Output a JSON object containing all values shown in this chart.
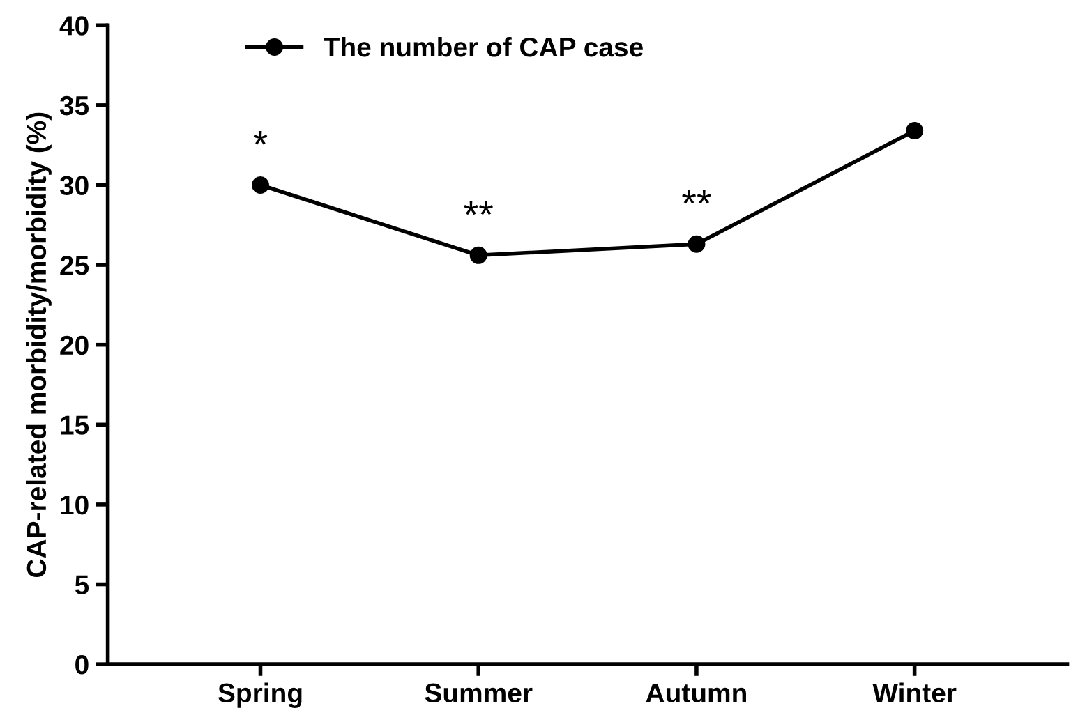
{
  "chart_data": {
    "type": "line",
    "ylabel": "CAP-related morbidity/morbidity (%)",
    "categories": [
      "Spring",
      "Summer",
      "Autumn",
      "Winter"
    ],
    "series": [
      {
        "name": "The number of CAP case",
        "color": "#000000",
        "values": [
          30.0,
          25.6,
          26.3,
          33.4
        ]
      }
    ],
    "ylim": [
      0,
      40
    ],
    "yticks": [
      0,
      5,
      10,
      15,
      20,
      25,
      30,
      35,
      40
    ],
    "annotations": [
      {
        "text": "*",
        "x": "Spring",
        "y": 30.0
      },
      {
        "text": "**",
        "x": "Summer",
        "y": 25.6
      },
      {
        "text": "**",
        "x": "Autumn",
        "y": 26.3
      }
    ],
    "marker": "circle",
    "line_style": "solid",
    "grid": false,
    "legend": "top left"
  }
}
